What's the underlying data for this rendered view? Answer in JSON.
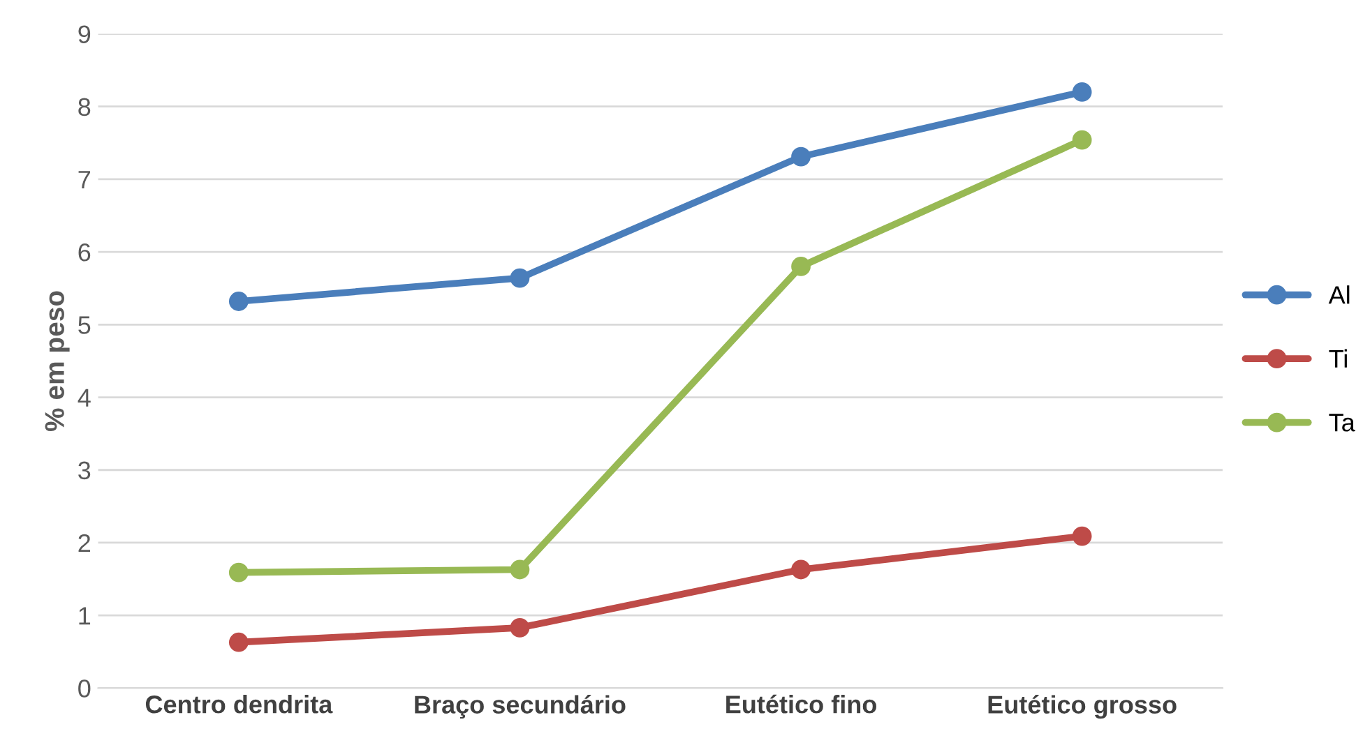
{
  "chart_data": {
    "type": "line",
    "ylabel": "% em peso",
    "categories": [
      "Centro dendrita",
      "Braço secundário",
      "Eutético fino",
      "Eutético grosso"
    ],
    "series": [
      {
        "name": "Al",
        "color": "#4a7ebb",
        "values": [
          5.32,
          5.64,
          7.31,
          8.2
        ]
      },
      {
        "name": "Ti",
        "color": "#be4b48",
        "values": [
          0.63,
          0.83,
          1.63,
          2.09
        ]
      },
      {
        "name": "Ta",
        "color": "#98b954",
        "values": [
          1.59,
          1.63,
          5.8,
          7.54
        ]
      }
    ],
    "ylim": [
      0,
      9
    ],
    "yticks": [
      0,
      1,
      2,
      3,
      4,
      5,
      6,
      7,
      8,
      9
    ],
    "grid": "y",
    "legend": "right",
    "marker": "circle",
    "line_style": "solid"
  }
}
